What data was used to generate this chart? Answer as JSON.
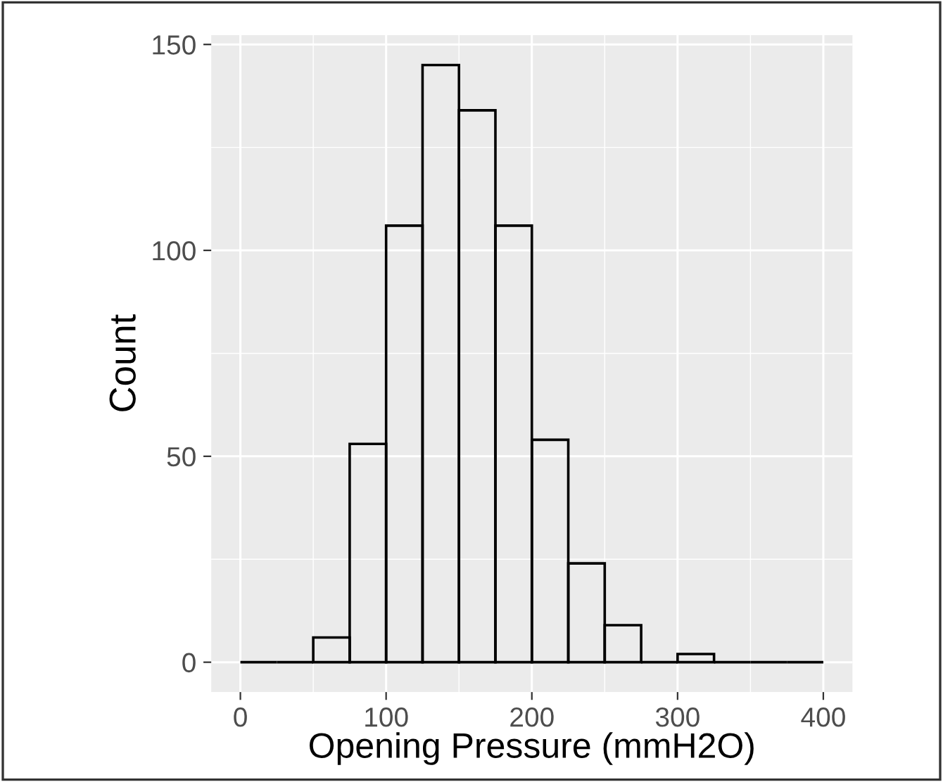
{
  "chart_data": {
    "type": "histogram",
    "xlabel": "Opening Pressure (mmH2O)",
    "ylabel": "Count",
    "bins": [
      0,
      25,
      50,
      75,
      100,
      125,
      150,
      175,
      200,
      225,
      250,
      275,
      300,
      325,
      350,
      375,
      400
    ],
    "values": [
      0,
      0,
      6,
      53,
      106,
      145,
      134,
      106,
      54,
      24,
      9,
      0,
      2,
      0,
      0,
      0
    ],
    "color": "#000000",
    "xlim": [
      -20,
      420
    ],
    "xticks": [
      0,
      100,
      200,
      300,
      400
    ],
    "ylim": [
      -7.25,
      152.25
    ],
    "yticks": [
      0,
      50,
      100,
      150
    ],
    "grid": true
  }
}
